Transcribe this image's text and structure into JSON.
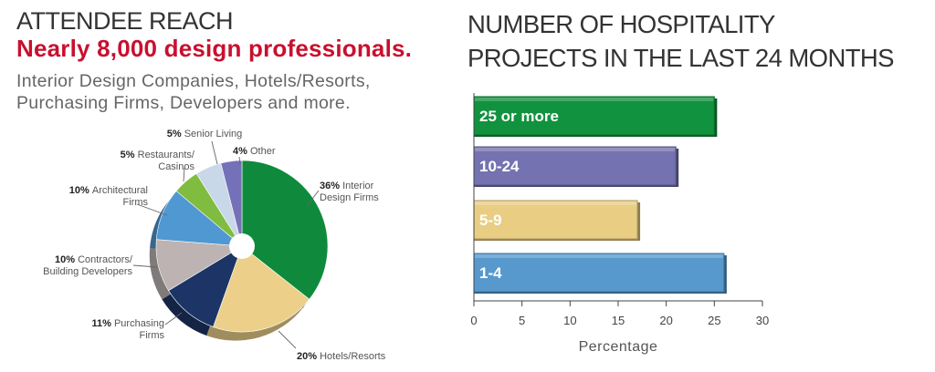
{
  "left": {
    "title": "ATTENDEE REACH",
    "subtitle": "Nearly 8,000 design professionals.",
    "description_line1": "Interior Design Companies, Hotels/Resorts,",
    "description_line2": "Purchasing Firms, Developers and more."
  },
  "right": {
    "title_line1": "NUMBER OF HOSPITALITY",
    "title_line2": "PROJECTS IN THE LAST 24 MONTHS"
  },
  "chart_data": [
    {
      "type": "pie",
      "title": "ATTENDEE REACH",
      "slices": [
        {
          "pct": "36%",
          "value": 36,
          "label_lines": [
            "Interior",
            "Design Firms"
          ],
          "color": "#0f8a3c"
        },
        {
          "pct": "20%",
          "value": 20,
          "label_lines": [
            "Hotels/Resorts"
          ],
          "color": "#ecd08a"
        },
        {
          "pct": "11%",
          "value": 11,
          "label_lines": [
            "Purchasing",
            "Firms"
          ],
          "color": "#1c3566"
        },
        {
          "pct": "10%",
          "value": 10,
          "label_lines": [
            "Contractors/",
            "Building Developers"
          ],
          "color": "#bdb3b3"
        },
        {
          "pct": "10%",
          "value": 10,
          "label_lines": [
            "Architectural",
            "Firms"
          ],
          "color": "#4f98d2"
        },
        {
          "pct": "5%",
          "value": 5,
          "label_lines": [
            "Restaurants/",
            "Casinos"
          ],
          "color": "#7fbc3f"
        },
        {
          "pct": "5%",
          "value": 5,
          "label_lines": [
            "Senior Living"
          ],
          "color": "#c9d8e8"
        },
        {
          "pct": "4%",
          "value": 4,
          "label_lines": [
            "Other"
          ],
          "color": "#7571b8"
        }
      ]
    },
    {
      "type": "bar",
      "orientation": "horizontal",
      "title": "NUMBER OF HOSPITALITY PROJECTS IN THE LAST 24 MONTHS",
      "categories": [
        "25 or more",
        "10-24",
        "5-9",
        "1-4"
      ],
      "values": [
        25,
        21,
        17,
        26
      ],
      "colors": [
        "#11923f",
        "#7472b0",
        "#e8cd83",
        "#5799cc"
      ],
      "xlabel": "Percentage",
      "xlim": [
        0,
        30
      ],
      "xticks": [
        0,
        5,
        10,
        15,
        20,
        25,
        30
      ]
    }
  ]
}
